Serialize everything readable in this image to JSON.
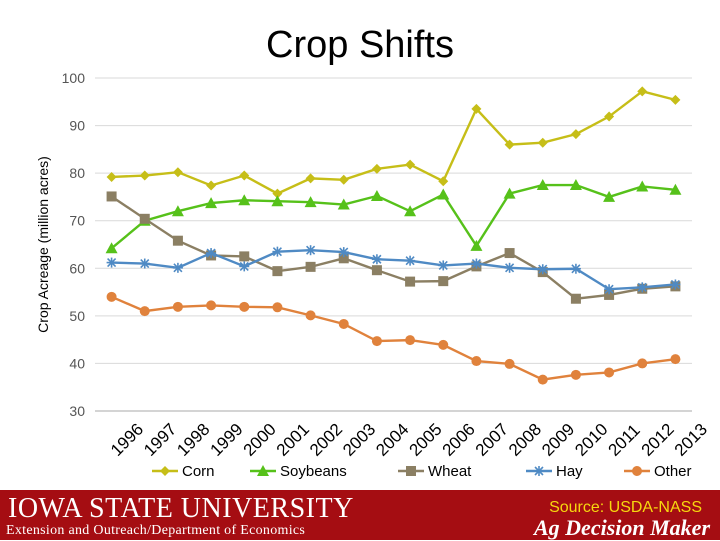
{
  "title": "Crop Shifts",
  "footer": {
    "university_logo": "IOWA STATE UNIVERSITY",
    "department": "Extension and Outreach/Department of Economics",
    "source": "Source: USDA-NASS",
    "program_logo": "Ag Decision Maker"
  },
  "chart_data": {
    "type": "line",
    "title": "Crop Shifts",
    "xlabel": "",
    "ylabel": "Crop Acreage (million acres)",
    "ylim": [
      30,
      100
    ],
    "yticks": [
      30,
      40,
      50,
      60,
      70,
      80,
      90,
      100
    ],
    "categories": [
      "1996",
      "1997",
      "1998",
      "1999",
      "2000",
      "2001",
      "2002",
      "2003",
      "2004",
      "2005",
      "2006",
      "2007",
      "2008",
      "2009",
      "2010",
      "2011",
      "2012",
      "2013"
    ],
    "grid": "horizontal",
    "legend_position": "bottom",
    "series": [
      {
        "name": "Corn",
        "color": "#c6be18",
        "marker": "diamond",
        "values": [
          79.2,
          79.5,
          80.2,
          77.4,
          79.5,
          75.7,
          78.9,
          78.6,
          80.9,
          81.8,
          78.3,
          93.5,
          86.0,
          86.4,
          88.2,
          91.9,
          97.2,
          95.4
        ]
      },
      {
        "name": "Soybeans",
        "color": "#56c11a",
        "marker": "triangle",
        "values": [
          64.2,
          70.0,
          72.0,
          73.7,
          74.3,
          74.1,
          73.9,
          73.4,
          75.2,
          72.0,
          75.5,
          64.7,
          75.7,
          77.5,
          77.5,
          75.0,
          77.2,
          76.5
        ]
      },
      {
        "name": "Wheat",
        "color": "#8b7f63",
        "marker": "square",
        "values": [
          75.1,
          70.4,
          65.8,
          62.7,
          62.5,
          59.4,
          60.3,
          62.1,
          59.6,
          57.2,
          57.3,
          60.4,
          63.2,
          59.2,
          53.6,
          54.4,
          55.7,
          56.2
        ]
      },
      {
        "name": "Hay",
        "color": "#4f8ac4",
        "marker": "star",
        "values": [
          61.2,
          61.0,
          60.1,
          63.2,
          60.4,
          63.5,
          63.8,
          63.4,
          61.9,
          61.6,
          60.6,
          61.0,
          60.1,
          59.8,
          59.9,
          55.6,
          56.0,
          56.6
        ]
      },
      {
        "name": "Other",
        "color": "#e0823c",
        "marker": "circle",
        "values": [
          54.0,
          51.0,
          51.9,
          52.2,
          51.9,
          51.8,
          50.1,
          48.3,
          44.7,
          44.9,
          43.9,
          40.5,
          39.9,
          36.6,
          37.6,
          38.1,
          40.0,
          40.9
        ]
      }
    ]
  }
}
